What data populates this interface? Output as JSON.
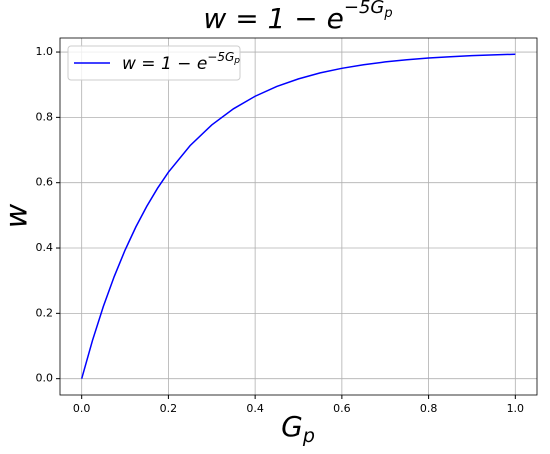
{
  "chart_data": {
    "type": "line",
    "title": [
      "w = 1 − e",
      "−5G",
      "p"
    ],
    "xlabel": [
      "G",
      "p"
    ],
    "ylabel": "w",
    "x": [
      0,
      0.025,
      0.05,
      0.075,
      0.1,
      0.125,
      0.15,
      0.175,
      0.2,
      0.25,
      0.3,
      0.35,
      0.4,
      0.45,
      0.5,
      0.55,
      0.6,
      0.65,
      0.7,
      0.75,
      0.8,
      0.85,
      0.9,
      0.95,
      1.0
    ],
    "series": [
      {
        "name": [
          "w = 1 − e",
          "−5G",
          "p"
        ],
        "color": "#0000ff",
        "values": [
          0,
          0.1175,
          0.2212,
          0.3127,
          0.3935,
          0.4647,
          0.5276,
          0.5831,
          0.6321,
          0.7135,
          0.7769,
          0.8262,
          0.8647,
          0.8946,
          0.9179,
          0.9361,
          0.9502,
          0.9612,
          0.9698,
          0.9765,
          0.9817,
          0.9857,
          0.9889,
          0.9913,
          0.9933
        ]
      }
    ],
    "xlim": [
      -0.05,
      1.05
    ],
    "ylim": [
      -0.05,
      1.043
    ],
    "xticks": [
      {
        "value": 0,
        "label": "0.0"
      },
      0.2,
      0.4,
      0.6,
      0.8,
      {
        "value": 1,
        "label": "1.0"
      }
    ],
    "yticks": [
      {
        "value": 0,
        "label": "0.0"
      },
      0.2,
      0.4,
      0.6,
      0.8,
      {
        "value": 1,
        "label": "1.0"
      }
    ],
    "grid": true,
    "legend": "upper left"
  }
}
